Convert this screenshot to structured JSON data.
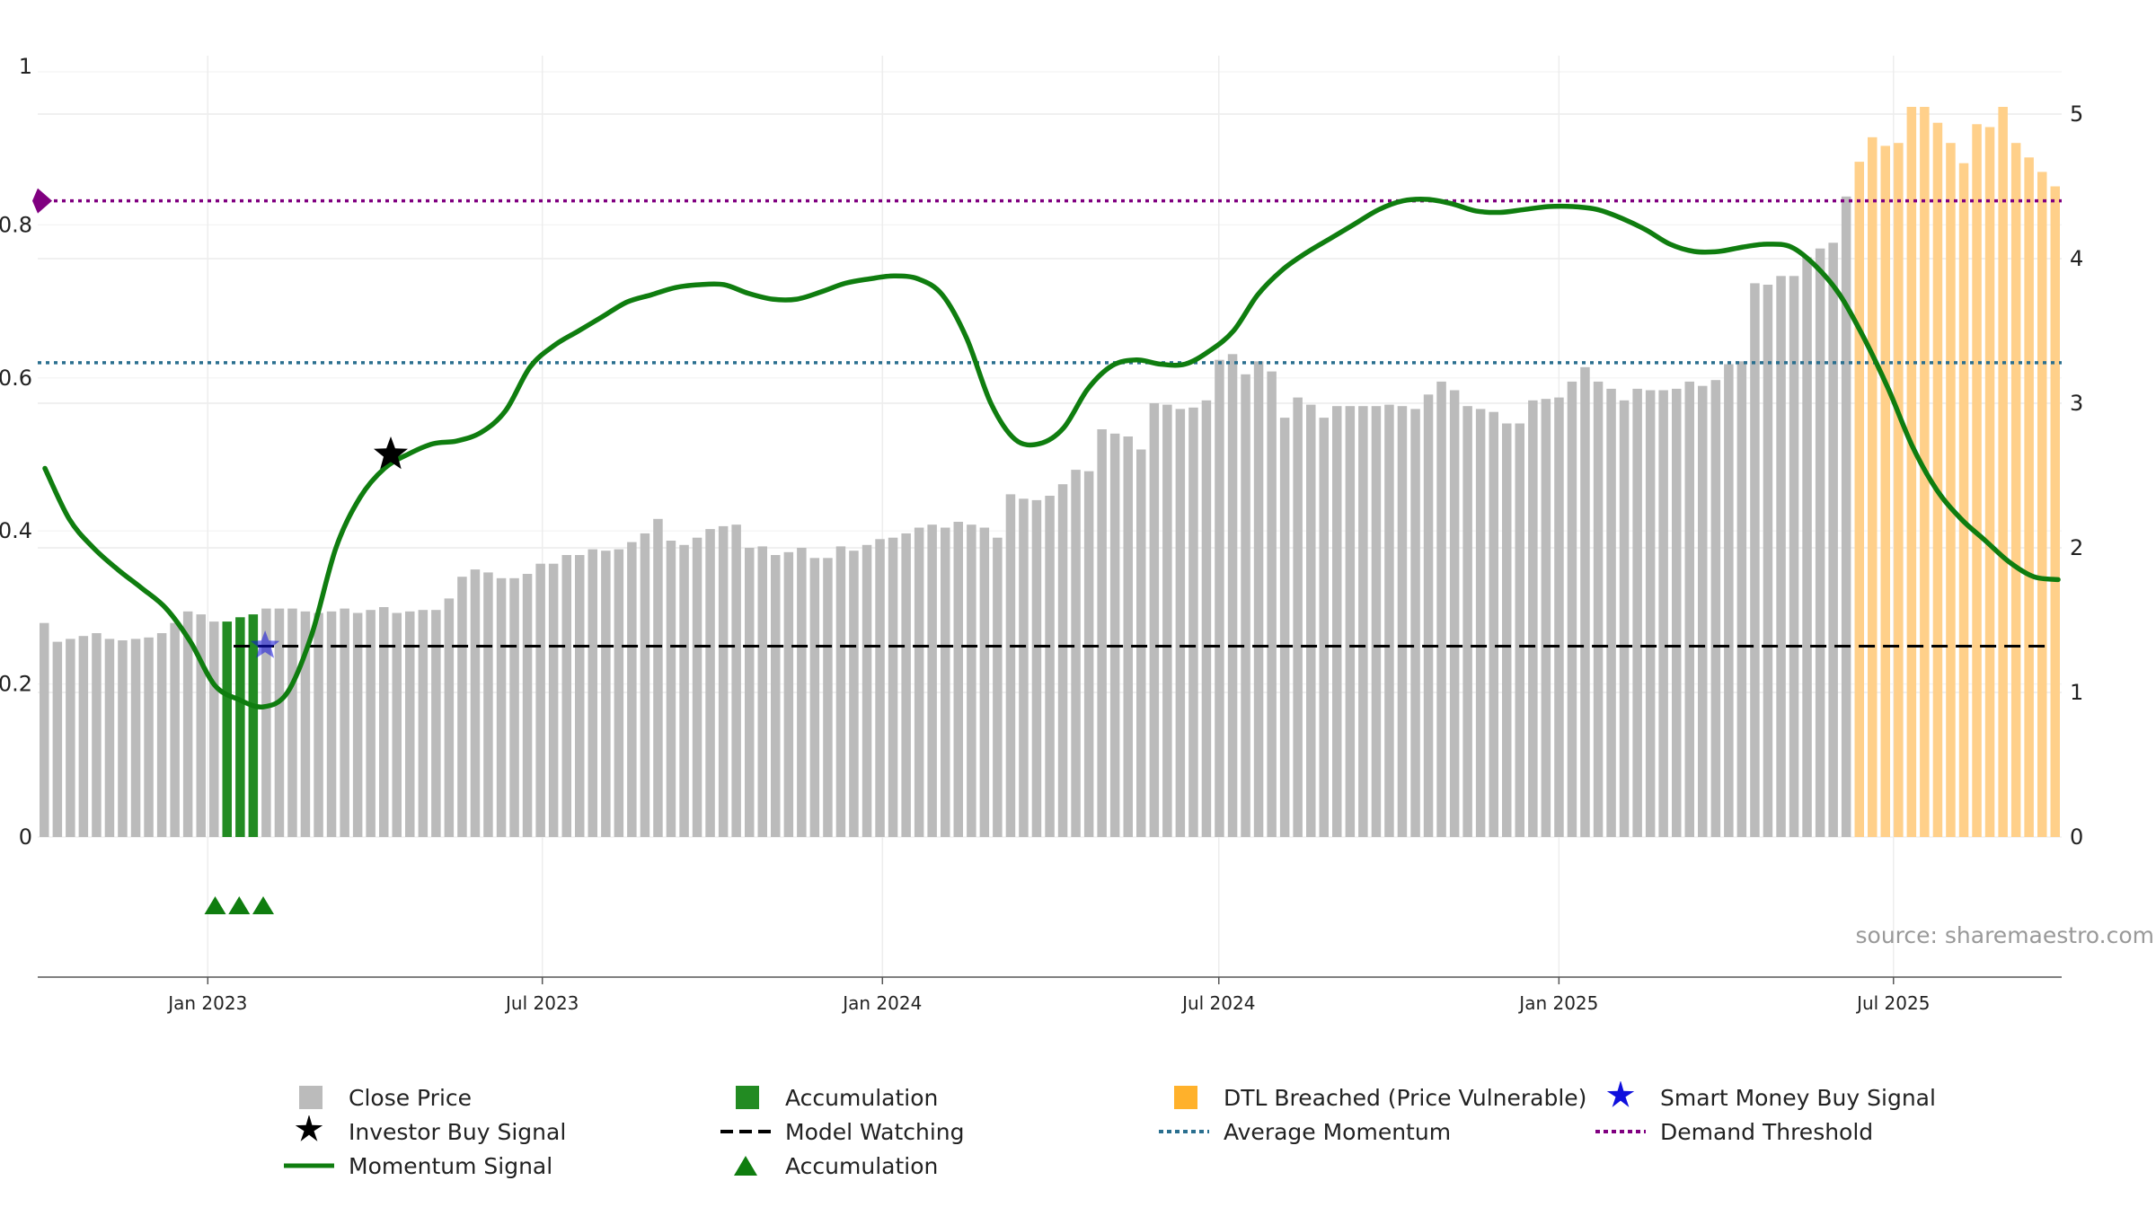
{
  "chart_data": {
    "type": "bar+line",
    "y_left": {
      "ticks": [
        "0",
        "0.2",
        "0.4",
        "0.6",
        "0.8",
        "1"
      ],
      "range": [
        0,
        1
      ]
    },
    "y_right": {
      "ticks": [
        "0",
        "1",
        "2",
        "3",
        "4",
        "5"
      ],
      "range": [
        0,
        5
      ]
    },
    "x_ticks": [
      "Jan 2023",
      "Jul 2023",
      "Jan 2024",
      "Jul 2024",
      "Jan 2025",
      "Jul 2025"
    ],
    "x_range": [
      "2022-10-01",
      "2025-09-30"
    ],
    "source_text": "source: sharemaestro.com",
    "thresholds": {
      "demand_threshold": 4.4,
      "average_momentum": 3.28,
      "model_watching": 1.32
    },
    "close_price_weekly": [
      1.48,
      1.35,
      1.37,
      1.39,
      1.41,
      1.37,
      1.36,
      1.37,
      1.38,
      1.41,
      1.48,
      1.56,
      1.54,
      1.49,
      1.49,
      1.52,
      1.54,
      1.58,
      1.58,
      1.58,
      1.56,
      1.55,
      1.56,
      1.58,
      1.55,
      1.57,
      1.59,
      1.55,
      1.56,
      1.57,
      1.57,
      1.65,
      1.8,
      1.85,
      1.83,
      1.79,
      1.79,
      1.82,
      1.89,
      1.89,
      1.95,
      1.95,
      1.99,
      1.98,
      1.99,
      2.04,
      2.1,
      2.2,
      2.05,
      2.02,
      2.07,
      2.13,
      2.15,
      2.16,
      2.0,
      2.01,
      1.95,
      1.97,
      2.0,
      1.93,
      1.93,
      2.01,
      1.98,
      2.02,
      2.06,
      2.07,
      2.1,
      2.14,
      2.16,
      2.14,
      2.18,
      2.16,
      2.14,
      2.07,
      2.37,
      2.34,
      2.33,
      2.36,
      2.44,
      2.54,
      2.53,
      2.82,
      2.79,
      2.77,
      2.68,
      3.0,
      2.99,
      2.96,
      2.97,
      3.02,
      3.3,
      3.34,
      3.2,
      3.29,
      3.22,
      2.9,
      3.04,
      2.99,
      2.9,
      2.98,
      2.98,
      2.98,
      2.98,
      2.99,
      2.98,
      2.96,
      3.06,
      3.15,
      3.09,
      2.98,
      2.96,
      2.94,
      2.86,
      2.86,
      3.02,
      3.03,
      3.04,
      3.15,
      3.25,
      3.15,
      3.1,
      3.02,
      3.1,
      3.09,
      3.09,
      3.1,
      3.15,
      3.12,
      3.16,
      3.27,
      3.29,
      3.83,
      3.82,
      3.88,
      3.88,
      4.01,
      4.07,
      4.11,
      4.43,
      4.67,
      4.84,
      4.78,
      4.8,
      5.05,
      5.05,
      4.94,
      4.8,
      4.66,
      4.93,
      4.91,
      5.05,
      4.8,
      4.7,
      4.6,
      4.5
    ],
    "accumulation_weeks": [
      14,
      15,
      16
    ],
    "dtl_breached_from_week": 139,
    "momentum_signal": [
      [
        "2022-10-04",
        2.55
      ],
      [
        "2022-10-20",
        2.2
      ],
      [
        "2022-11-05",
        2.0
      ],
      [
        "2022-11-20",
        1.85
      ],
      [
        "2022-12-05",
        1.72
      ],
      [
        "2022-12-15",
        1.58
      ],
      [
        "2022-12-25",
        1.35
      ],
      [
        "2023-01-05",
        1.05
      ],
      [
        "2023-01-15",
        0.95
      ],
      [
        "2023-01-23",
        0.9
      ],
      [
        "2023-02-02",
        1.0
      ],
      [
        "2023-02-12",
        1.4
      ],
      [
        "2023-02-22",
        2.0
      ],
      [
        "2023-03-05",
        2.35
      ],
      [
        "2023-03-15",
        2.55
      ],
      [
        "2023-03-28",
        2.65
      ],
      [
        "2023-04-10",
        2.72
      ],
      [
        "2023-04-25",
        2.74
      ],
      [
        "2023-05-10",
        2.8
      ],
      [
        "2023-05-25",
        2.95
      ],
      [
        "2023-06-10",
        3.25
      ],
      [
        "2023-06-25",
        3.4
      ],
      [
        "2023-07-15",
        3.5
      ],
      [
        "2023-08-05",
        3.6
      ],
      [
        "2023-08-25",
        3.7
      ],
      [
        "2023-09-15",
        3.75
      ],
      [
        "2023-10-05",
        3.8
      ],
      [
        "2023-10-15",
        3.82
      ],
      [
        "2023-10-25",
        3.82
      ],
      [
        "2023-11-05",
        3.76
      ],
      [
        "2023-11-15",
        3.72
      ],
      [
        "2023-11-25",
        3.72
      ],
      [
        "2023-12-05",
        3.77
      ],
      [
        "2023-12-15",
        3.83
      ],
      [
        "2023-12-25",
        3.86
      ],
      [
        "2024-01-05",
        3.88
      ],
      [
        "2024-01-15",
        3.86
      ],
      [
        "2024-01-25",
        3.75
      ],
      [
        "2024-02-05",
        3.45
      ],
      [
        "2024-02-15",
        3.0
      ],
      [
        "2024-02-25",
        2.75
      ],
      [
        "2024-03-05",
        2.72
      ],
      [
        "2024-03-15",
        2.83
      ],
      [
        "2024-03-30",
        3.1
      ],
      [
        "2024-04-10",
        3.26
      ],
      [
        "2024-04-25",
        3.3
      ],
      [
        "2024-05-10",
        3.27
      ],
      [
        "2024-05-25",
        3.27
      ],
      [
        "2024-06-10",
        3.36
      ],
      [
        "2024-06-25",
        3.5
      ],
      [
        "2024-07-10",
        3.75
      ],
      [
        "2024-07-25",
        3.92
      ],
      [
        "2024-08-10",
        4.04
      ],
      [
        "2024-08-25",
        4.14
      ],
      [
        "2024-09-10",
        4.24
      ],
      [
        "2024-09-25",
        4.34
      ],
      [
        "2024-10-10",
        4.4
      ],
      [
        "2024-10-25",
        4.41
      ],
      [
        "2024-11-10",
        4.38
      ],
      [
        "2024-11-25",
        4.33
      ],
      [
        "2024-12-10",
        4.32
      ],
      [
        "2024-12-25",
        4.34
      ],
      [
        "2025-01-10",
        4.36
      ],
      [
        "2025-01-25",
        4.36
      ],
      [
        "2025-02-10",
        4.34
      ],
      [
        "2025-02-25",
        4.28
      ],
      [
        "2025-03-10",
        4.2
      ],
      [
        "2025-03-25",
        4.1
      ],
      [
        "2025-04-10",
        4.05
      ],
      [
        "2025-04-25",
        4.05
      ],
      [
        "2025-05-10",
        4.08
      ],
      [
        "2025-05-25",
        4.1
      ],
      [
        "2025-06-05",
        4.08
      ],
      [
        "2025-06-15",
        3.95
      ],
      [
        "2025-06-25",
        3.75
      ],
      [
        "2025-07-05",
        3.45
      ],
      [
        "2025-07-15",
        3.1
      ],
      [
        "2025-07-25",
        2.7
      ],
      [
        "2025-08-05",
        2.4
      ],
      [
        "2025-08-15",
        2.2
      ],
      [
        "2025-08-25",
        2.05
      ],
      [
        "2025-09-05",
        1.9
      ],
      [
        "2025-09-15",
        1.8
      ],
      [
        "2025-09-20",
        1.78
      ]
    ],
    "investor_buy_signal": {
      "date": "2023-04-10",
      "value": 0.5
    },
    "smart_money_buy_signal": {
      "date": "2023-02-01",
      "value": 0.25
    },
    "accumulation_markers": [
      "2023-01-05",
      "2023-01-18",
      "2023-01-31"
    ],
    "legend": [
      {
        "label": "Close Price",
        "symbol": "square",
        "color": "#bbbbbb"
      },
      {
        "label": "Accumulation",
        "symbol": "square",
        "color": "#228b22"
      },
      {
        "label": "DTL Breached (Price Vulnerable)",
        "symbol": "square",
        "color": "#ffb12b"
      },
      {
        "label": "Smart Money Buy Signal",
        "symbol": "star",
        "color": "#1010dd"
      },
      {
        "label": "Investor Buy Signal",
        "symbol": "star",
        "color": "#000000"
      },
      {
        "label": "Model Watching",
        "symbol": "dash",
        "color": "#000000"
      },
      {
        "label": "Average Momentum",
        "symbol": "dotted",
        "color": "#2a6f8f"
      },
      {
        "label": "Demand Threshold",
        "symbol": "dotted",
        "color": "#800080"
      },
      {
        "label": "Momentum Signal",
        "symbol": "line",
        "color": "#0f7d0f"
      },
      {
        "label": "Accumulation",
        "symbol": "triangle",
        "color": "#0f7d0f"
      }
    ],
    "colors": {
      "close_price": "#bbbbbb",
      "accumulation": "#228b22",
      "dtl_breached": "#ffd08a",
      "momentum": "#0f7d0f",
      "momentum_in_dtl": "#5c9420",
      "average_momentum": "#2a6f8f",
      "demand_threshold": "#800080",
      "model_watching": "#000000"
    }
  }
}
